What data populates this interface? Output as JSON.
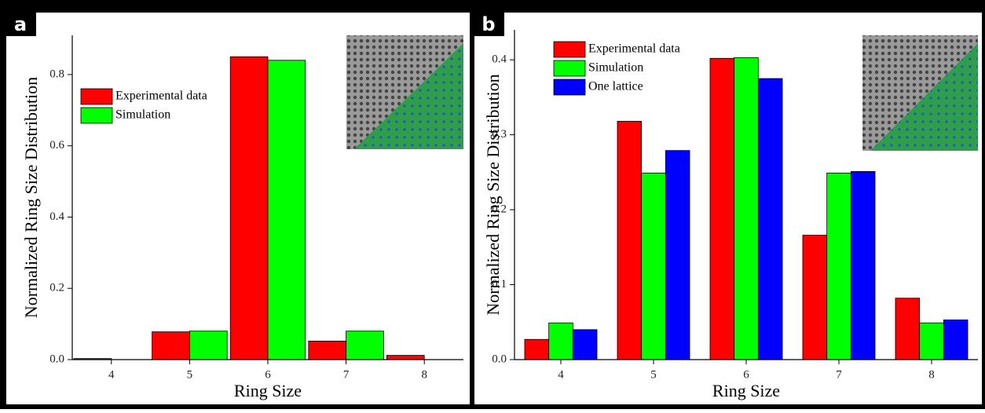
{
  "chart_data": [
    {
      "type": "bar",
      "label": "a",
      "xlabel": "Ring Size",
      "ylabel": "Normalized Ring Size Distribution",
      "categories": [
        "4",
        "5",
        "6",
        "7",
        "8"
      ],
      "series": [
        {
          "name": "Experimental data",
          "color": "#ff0000",
          "values": [
            0.003,
            0.078,
            0.85,
            0.052,
            0.012
          ]
        },
        {
          "name": "Simulation",
          "color": "#00ff00",
          "values": [
            0,
            0.08,
            0.84,
            0.08,
            0
          ]
        }
      ],
      "ylim": [
        0,
        0.91
      ],
      "yticks": [
        {
          "value": 0,
          "label": "0.0"
        },
        0.2,
        0.4,
        0.6,
        0.8
      ],
      "legend": "upper left"
    },
    {
      "type": "bar",
      "label": "b",
      "xlabel": "Ring Size",
      "ylabel": "Normalized Ring Size Distribution",
      "categories": [
        "4",
        "5",
        "6",
        "7",
        "8"
      ],
      "series": [
        {
          "name": "Experimental data",
          "color": "#ff0000",
          "values": [
            0.027,
            0.318,
            0.402,
            0.166,
            0.082
          ]
        },
        {
          "name": "Simulation",
          "color": "#00ff00",
          "values": [
            0.049,
            0.249,
            0.403,
            0.249,
            0.049
          ]
        },
        {
          "name": "One lattice",
          "color": "#0000ff",
          "values": [
            0.04,
            0.279,
            0.375,
            0.251,
            0.053
          ]
        }
      ],
      "ylim": [
        0,
        0.44
      ],
      "yticks": [
        {
          "value": 0,
          "label": "0.0"
        },
        0.1,
        0.2,
        0.3,
        0.4
      ],
      "legend": "upper left"
    }
  ]
}
